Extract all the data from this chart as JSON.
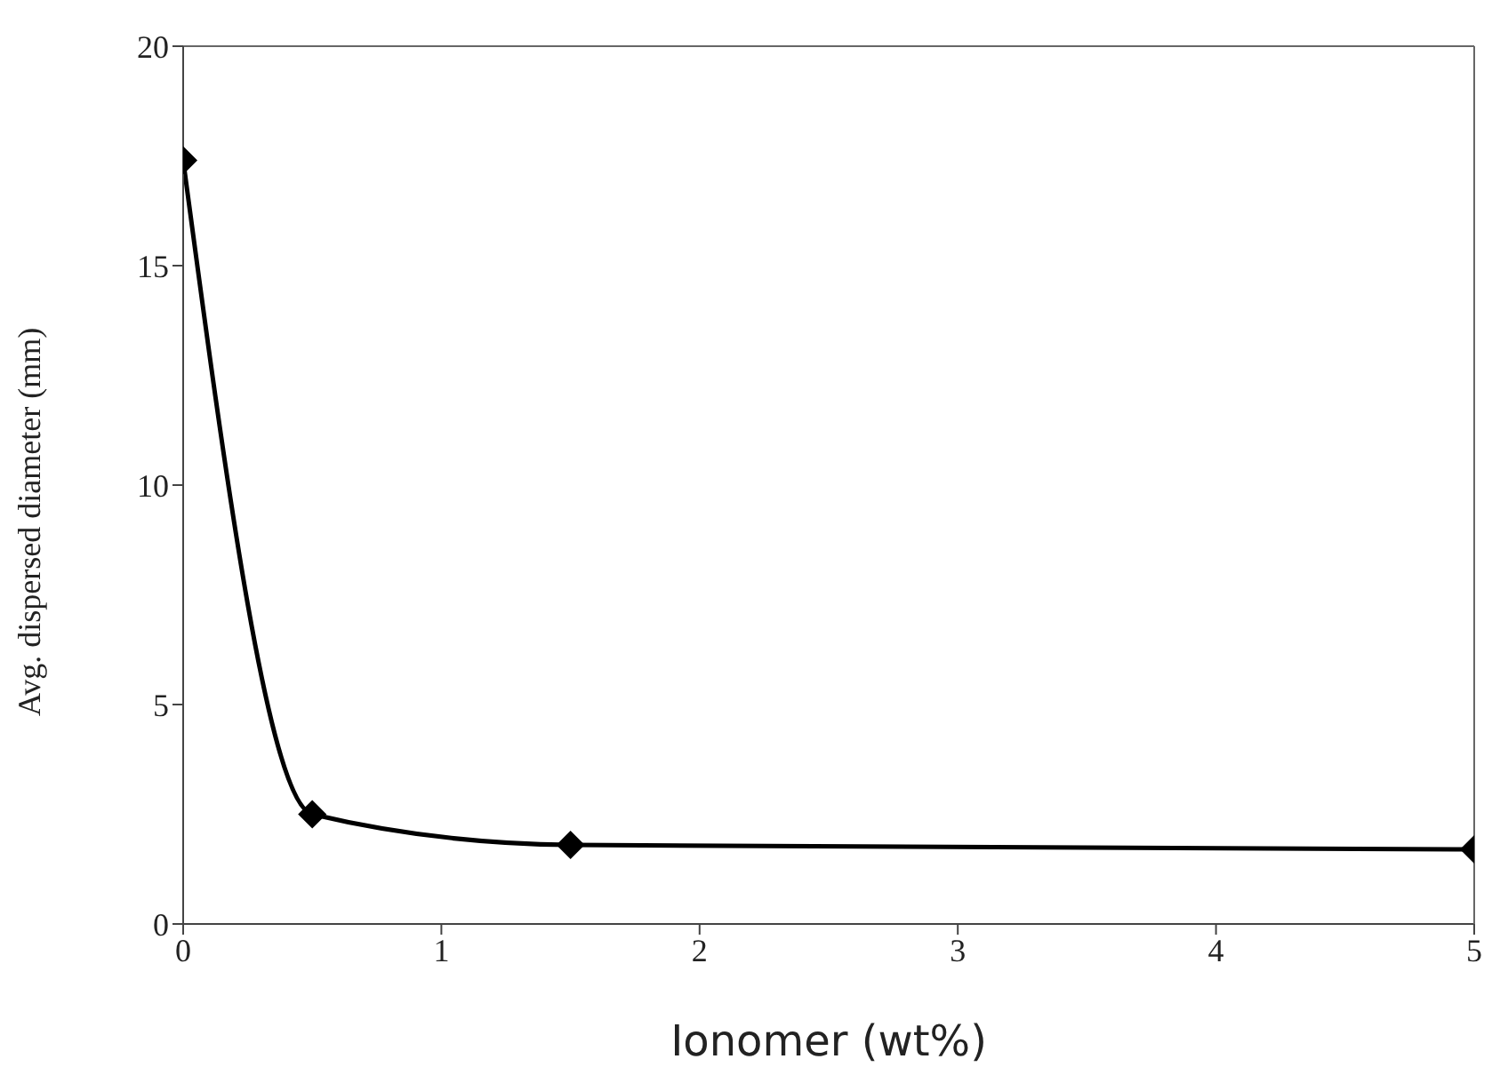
{
  "chart_data": {
    "type": "line",
    "xlabel": "Ionomer (wt%)",
    "ylabel": "Avg. dispersed diameter (mm)",
    "x": [
      0,
      0.5,
      1.5,
      5
    ],
    "series": [
      {
        "color": "#000000",
        "values": [
          17.4,
          2.5,
          1.8,
          1.7
        ]
      }
    ],
    "xlim": [
      0,
      5
    ],
    "xticks": [
      0,
      1,
      2,
      3,
      4,
      5
    ],
    "ylim": [
      0,
      20
    ],
    "yticks": [
      0,
      5,
      10,
      15,
      20
    ],
    "grid": false,
    "legend": false,
    "marker": "diamond",
    "line_style": "solid"
  }
}
